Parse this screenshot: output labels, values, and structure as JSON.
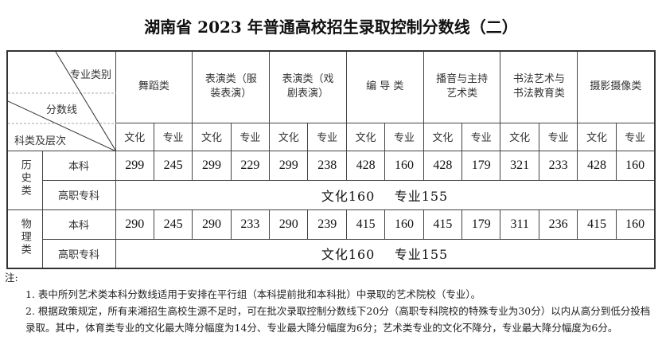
{
  "title": "湖南省 2023 年普通高校招生录取控制分数线（二）",
  "header": {
    "diag_top": "专业类别",
    "diag_mid": "分数线",
    "diag_bottom": "科类及层次",
    "categories": [
      "舞蹈类",
      "表演类（服装表演）",
      "表演类（戏剧表演）",
      "编 导 类",
      "播音与主持艺术类",
      "书法艺术与书法教育类",
      "摄影摄像类"
    ],
    "sub": [
      "文化",
      "专业"
    ]
  },
  "groups": [
    {
      "name": "历史类",
      "rows": [
        {
          "level": "本科",
          "values": [
            299,
            245,
            299,
            229,
            299,
            238,
            428,
            160,
            428,
            179,
            321,
            233,
            428,
            160
          ]
        },
        {
          "level": "高职专科",
          "merged": "文化160    专业155"
        }
      ]
    },
    {
      "name": "物理类",
      "rows": [
        {
          "level": "本科",
          "values": [
            290,
            245,
            290,
            233,
            290,
            239,
            415,
            160,
            415,
            179,
            311,
            236,
            415,
            160
          ]
        },
        {
          "level": "高职专科",
          "merged": "文化160    专业155"
        }
      ]
    }
  ],
  "notes": {
    "label": "注:",
    "items": [
      "1.  表中所列艺术类本科分数线适用于安排在平行组（本科提前批和本科批）中录取的艺术院校（专业）。",
      "2.  根据政策规定，所有来湘招生高校生源不足时，可在批次录取控制分数线下20分（高职专科院校的特殊专业为30分）以内从高分到低分投档录取。其中，体育类专业的文化最大降分幅度为14分、专业最大降分幅度为6分；艺术类专业的文化不降分，专业最大降分幅度为6分。"
    ]
  }
}
